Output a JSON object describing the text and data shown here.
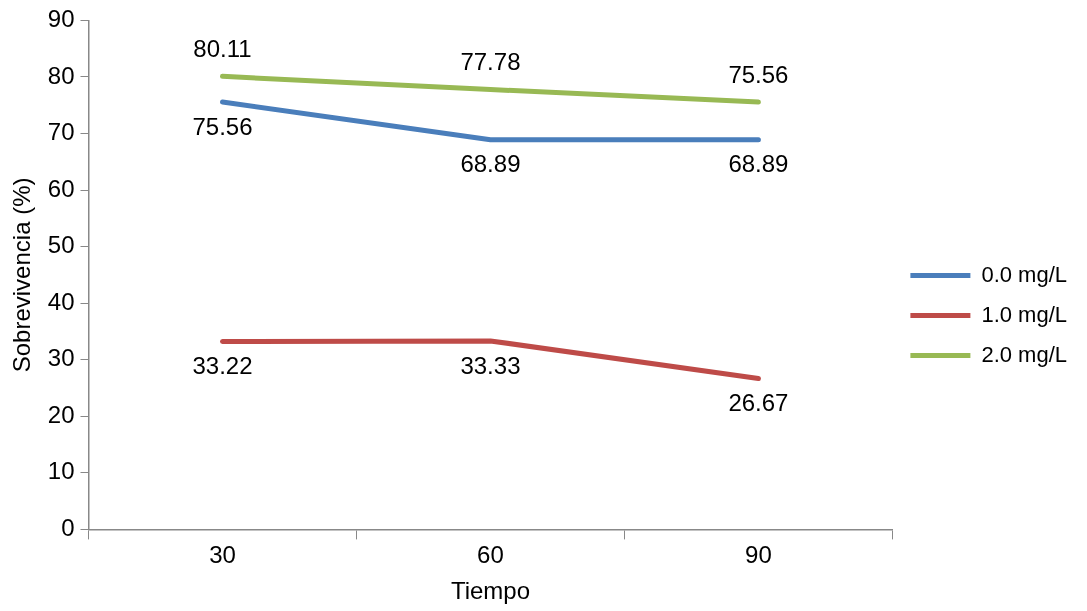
{
  "chart_data": {
    "type": "line",
    "xlabel": "Tiempo",
    "ylabel": "Sobrevivencia (%)",
    "categories": [
      "30",
      "60",
      "90"
    ],
    "series": [
      {
        "name": "0.0 mg/L",
        "color": "#4a7ebb",
        "values": [
          75.56,
          68.89,
          68.89
        ]
      },
      {
        "name": "1.0 mg/L",
        "color": "#be4b48",
        "values": [
          33.22,
          33.33,
          26.67
        ]
      },
      {
        "name": "2.0 mg/L",
        "color": "#98b954",
        "values": [
          80.11,
          77.78,
          75.56
        ]
      }
    ],
    "ylim": [
      0,
      90
    ],
    "yticks": [
      0,
      10,
      20,
      30,
      40,
      50,
      60,
      70,
      80,
      90
    ],
    "grid": false,
    "legend": "right",
    "marker": "none",
    "line_style": "solid",
    "data_labels": true
  }
}
